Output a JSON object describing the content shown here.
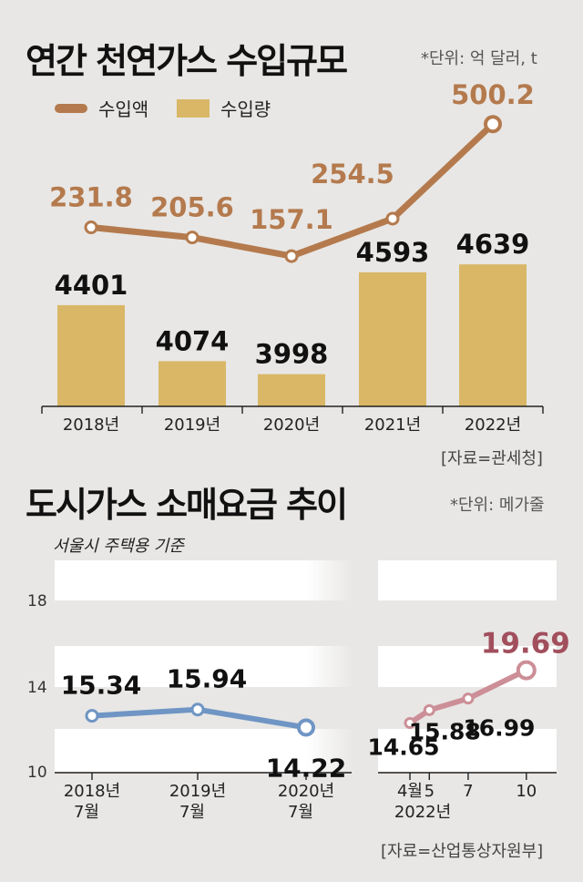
{
  "colors": {
    "background": "#e8e7e5",
    "import_value_line": "#b47a4d",
    "import_volume_bar": "#d9b767",
    "retail_2018_2020_line": "#6f95c4",
    "retail_2022_line": "#cc8f97",
    "highlight_2022": "#a24f5d"
  },
  "section1": {
    "title": "연간 천연가스 수입규모",
    "unit": "*단위: 억 달러, t",
    "source": "[자료=관세청]"
  },
  "section2": {
    "title": "도시가스 소매요금 추이",
    "unit": "*단위: 메가줄",
    "subtitle": "서울시 주택용 기준",
    "source": "[자료=산업통상자원부]"
  },
  "chart_data": [
    {
      "type": "bar",
      "title": "연간 천연가스 수입규모",
      "categories": [
        "2018년",
        "2019년",
        "2020년",
        "2021년",
        "2022년"
      ],
      "legend": "top-left",
      "series": [
        {
          "name": "수입액",
          "type": "line",
          "values": [
            231.8,
            205.6,
            157.1,
            254.5,
            500.2
          ],
          "labels": [
            "231.8",
            "205.6",
            "157.1",
            "254.5",
            "500.2"
          ],
          "color": "#b47a4d"
        },
        {
          "name": "수입량",
          "type": "bar",
          "values": [
            4401,
            4074,
            3998,
            4593,
            4639
          ],
          "labels": [
            "4401",
            "4074",
            "3998",
            "4593",
            "4639"
          ],
          "color": "#d9b767"
        }
      ]
    },
    {
      "type": "line",
      "title": "도시가스 소매요금 추이",
      "yticks": [
        "18",
        "14",
        "10"
      ],
      "ylim": [
        10,
        20
      ],
      "grid": true,
      "panels": [
        {
          "x_labels": [
            [
              "2018년",
              "7월"
            ],
            [
              "2019년",
              "7월"
            ],
            [
              "2020년",
              "7월"
            ]
          ],
          "values": [
            15.34,
            15.94,
            14.22
          ],
          "labels": [
            "15.34",
            "15.94",
            "14.22"
          ],
          "color": "#6f95c4"
        },
        {
          "x_labels": [
            "4월",
            "5",
            "7",
            "10"
          ],
          "year_label": "2022년",
          "x_months": [
            4,
            5,
            7,
            10
          ],
          "values": [
            14.65,
            15.88,
            16.99,
            19.69
          ],
          "labels": [
            "14.65",
            "15.88",
            "16.99",
            "19.69"
          ],
          "color": "#cc8f97"
        }
      ]
    }
  ]
}
